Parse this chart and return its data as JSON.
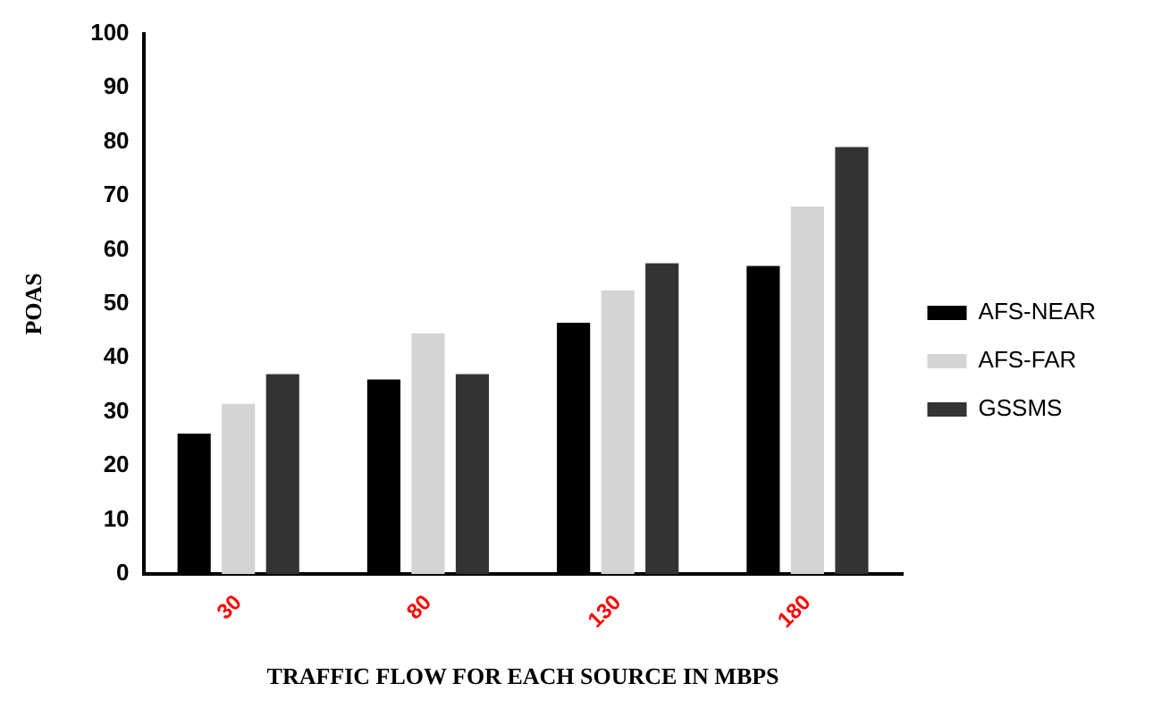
{
  "chart_data": {
    "type": "bar",
    "xlabel": "TRAFFIC FLOW FOR EACH SOURCE IN MBPS",
    "ylabel": "POAS",
    "categories": [
      "30",
      "80",
      "130",
      "180"
    ],
    "series": [
      {
        "name": "AFS-NEAR",
        "color": "#000000",
        "values": [
          26,
          36,
          46.5,
          57
        ]
      },
      {
        "name": "AFS-FAR",
        "color": "#d4d4d4",
        "values": [
          31.5,
          44.5,
          52.5,
          68
        ]
      },
      {
        "name": "GSSMS",
        "color": "#333333",
        "values": [
          37,
          37,
          57.5,
          79
        ]
      }
    ],
    "ylim": [
      0,
      100
    ],
    "yticks": [
      0,
      10,
      20,
      30,
      40,
      50,
      60,
      70,
      80,
      90,
      100
    ],
    "grid": false,
    "legend": "right"
  }
}
